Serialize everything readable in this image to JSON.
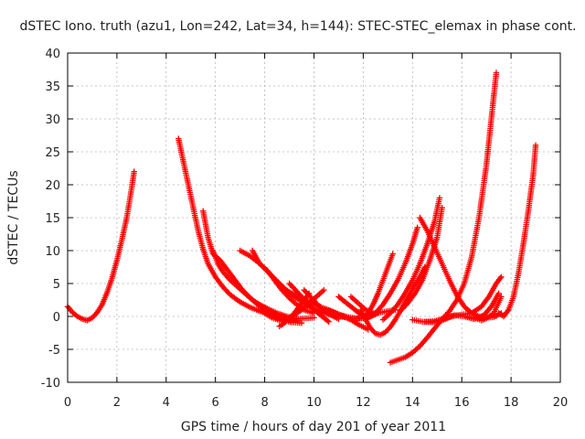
{
  "chart_data": {
    "type": "scatter",
    "title": "dSTEC Iono. truth (azu1, Lon=242, Lat=34, h=144): STEC-STEC_elemax in phase cont.",
    "xlabel": "GPS time / hours of day 201 of year 2011",
    "ylabel": "dSTEC  / TECUs",
    "xlim": [
      0,
      20
    ],
    "ylim": [
      -10,
      40
    ],
    "xticks": [
      0,
      2,
      4,
      6,
      8,
      10,
      12,
      14,
      16,
      18,
      20
    ],
    "yticks": [
      -10,
      -5,
      0,
      5,
      10,
      15,
      20,
      25,
      30,
      35,
      40
    ],
    "grid": true,
    "marker": "+",
    "color": "#ff0000",
    "series": [
      {
        "x": [
          0.0,
          0.2,
          0.4,
          0.6,
          0.8,
          1.0,
          1.2,
          1.4,
          1.6,
          1.8,
          2.0,
          2.2,
          2.4,
          2.6,
          2.7
        ],
        "y": [
          1.5,
          0.6,
          0.0,
          -0.4,
          -0.6,
          -0.2,
          0.6,
          1.8,
          3.6,
          5.8,
          8.5,
          11.6,
          15.0,
          19.5,
          22.0
        ]
      },
      {
        "x": [
          4.5,
          4.7,
          4.9,
          5.1,
          5.3,
          5.5,
          5.7,
          6.0,
          6.3,
          6.6,
          7.0,
          7.4,
          7.8,
          8.2,
          8.6,
          9.0,
          9.3,
          9.6,
          10.0
        ],
        "y": [
          27.0,
          23.5,
          20.0,
          16.5,
          13.0,
          10.2,
          8.0,
          6.0,
          4.5,
          3.3,
          2.2,
          1.4,
          0.8,
          0.3,
          -0.1,
          -0.3,
          -0.4,
          -0.3,
          -0.2
        ]
      },
      {
        "x": [
          5.5,
          5.7,
          5.9,
          6.2,
          6.5,
          6.8,
          7.1,
          7.5,
          7.9,
          8.3,
          8.7,
          9.1,
          9.5
        ],
        "y": [
          16.0,
          12.0,
          9.5,
          8.5,
          7.0,
          5.5,
          4.0,
          2.5,
          1.2,
          0.2,
          -0.5,
          -0.9,
          -1.0
        ]
      },
      {
        "x": [
          5.9,
          6.1,
          6.3,
          6.6,
          6.9,
          7.2,
          7.5,
          7.8,
          8.1,
          8.5,
          8.9,
          9.3
        ],
        "y": [
          10.0,
          8.0,
          6.8,
          5.5,
          4.5,
          3.5,
          2.5,
          1.8,
          1.2,
          0.5,
          0.0,
          -0.3
        ]
      },
      {
        "x": [
          7.0,
          7.4,
          7.8,
          8.1,
          8.4,
          8.7,
          9.0,
          9.3,
          9.6,
          10.0
        ],
        "y": [
          10.0,
          9.2,
          8.0,
          7.0,
          5.5,
          4.0,
          2.8,
          1.8,
          1.0,
          0.5
        ]
      },
      {
        "x": [
          7.5,
          7.8,
          8.2,
          8.6,
          9.0,
          9.4,
          9.8,
          10.2,
          10.6,
          11.0,
          11.4,
          11.8
        ],
        "y": [
          10.0,
          8.0,
          6.5,
          5.0,
          3.5,
          2.5,
          1.5,
          0.8,
          0.3,
          0.0,
          -0.2,
          -0.3
        ]
      },
      {
        "x": [
          8.5,
          8.8,
          9.1,
          9.4,
          9.7,
          10.0,
          10.3,
          10.6,
          10.9,
          11.2,
          11.5,
          11.8,
          12.2
        ],
        "y": [
          5.0,
          4.2,
          3.5,
          3.0,
          2.4,
          1.9,
          1.4,
          1.0,
          0.5,
          0.0,
          -0.5,
          -1.2,
          -2.0
        ]
      },
      {
        "x": [
          9.0,
          9.2,
          9.4,
          9.6,
          9.8,
          10.0,
          10.2,
          10.4,
          10.6
        ],
        "y": [
          5.0,
          4.2,
          3.4,
          2.6,
          1.8,
          1.0,
          0.4,
          -0.2,
          -0.8
        ]
      },
      {
        "x": [
          8.0,
          8.3,
          8.6,
          8.9,
          9.2,
          9.5,
          9.8,
          10.1,
          10.4
        ],
        "y": [
          0.5,
          -0.2,
          -0.6,
          -0.4,
          0.2,
          1.0,
          2.0,
          3.0,
          4.0
        ]
      },
      {
        "x": [
          8.6,
          8.8,
          9.0,
          9.2,
          9.4,
          9.6,
          9.8
        ],
        "y": [
          -1.5,
          -1.0,
          -0.3,
          0.5,
          1.5,
          2.5,
          3.5
        ]
      },
      {
        "x": [
          9.6,
          9.8,
          10.0,
          10.2,
          10.4,
          10.6,
          10.8,
          11.0
        ],
        "y": [
          4.0,
          3.2,
          2.4,
          1.6,
          1.0,
          0.4,
          0.0,
          -0.4
        ]
      },
      {
        "x": [
          10.5,
          10.8,
          11.1,
          11.4,
          11.7,
          12.0,
          12.3,
          12.6
        ],
        "y": [
          1.0,
          0.6,
          0.2,
          -0.1,
          -0.3,
          -0.3,
          0.0,
          0.5
        ]
      },
      {
        "x": [
          11.0,
          11.2,
          11.4,
          11.6,
          11.8,
          12.0
        ],
        "y": [
          3.0,
          2.4,
          1.8,
          1.2,
          0.6,
          0.1
        ]
      },
      {
        "x": [
          11.5,
          11.8,
          12.1,
          12.4,
          12.7,
          13.0,
          13.3
        ],
        "y": [
          3.0,
          2.0,
          1.0,
          0.5,
          0.6,
          0.8,
          1.0
        ]
      },
      {
        "x": [
          11.9,
          12.1,
          12.3,
          12.5,
          12.7,
          12.9,
          13.1,
          13.3,
          13.5,
          13.7,
          13.9,
          14.1,
          14.3,
          14.5
        ],
        "y": [
          1.0,
          -0.5,
          -1.8,
          -2.6,
          -2.8,
          -2.4,
          -1.6,
          -0.5,
          0.8,
          2.2,
          3.5,
          4.8,
          6.0,
          7.5
        ]
      },
      {
        "x": [
          11.8,
          12.0,
          12.2,
          12.4,
          12.6,
          12.8,
          13.0,
          13.2
        ],
        "y": [
          -0.2,
          -0.2,
          0.5,
          1.8,
          3.5,
          5.5,
          7.5,
          9.5
        ]
      },
      {
        "x": [
          12.2,
          12.5,
          12.8,
          13.1,
          13.4,
          13.7,
          14.0,
          14.2
        ],
        "y": [
          -0.2,
          0.5,
          1.8,
          3.5,
          5.5,
          8.0,
          11.0,
          13.5
        ]
      },
      {
        "x": [
          12.8,
          13.1,
          13.4,
          13.7,
          14.0,
          14.3,
          14.6,
          14.9,
          15.1
        ],
        "y": [
          -0.5,
          0.5,
          1.8,
          3.5,
          5.5,
          8.0,
          11.0,
          14.5,
          18.0
        ]
      },
      {
        "x": [
          13.5,
          13.8,
          14.1,
          14.4,
          14.7,
          15.0,
          15.2
        ],
        "y": [
          0.8,
          2.0,
          3.5,
          5.5,
          8.5,
          12.0,
          16.5
        ]
      },
      {
        "x": [
          13.1,
          13.4,
          13.7,
          14.0,
          14.3,
          14.6,
          14.9,
          15.2,
          15.5,
          15.8,
          16.1,
          16.4,
          16.7,
          17.0,
          17.2,
          17.4
        ],
        "y": [
          -7.0,
          -6.6,
          -6.2,
          -5.5,
          -4.5,
          -3.2,
          -1.8,
          -0.4,
          0.8,
          2.5,
          5.0,
          9.0,
          15.0,
          23.0,
          30.0,
          37.0
        ]
      },
      {
        "x": [
          14.3,
          14.6,
          14.9,
          15.2,
          15.5,
          15.8,
          16.1,
          16.4,
          16.7,
          17.0,
          17.3,
          17.6
        ],
        "y": [
          15.0,
          13.0,
          10.5,
          8.0,
          5.5,
          3.2,
          1.5,
          0.5,
          0.0,
          -0.2,
          -0.1,
          0.5
        ]
      },
      {
        "x": [
          14.0,
          14.4,
          14.8,
          15.2,
          15.6,
          16.0,
          16.4,
          16.8,
          17.1,
          17.4,
          17.6
        ],
        "y": [
          -0.5,
          -0.8,
          -0.9,
          -0.6,
          0.0,
          0.3,
          0.5,
          1.5,
          3.0,
          5.0,
          6.0
        ]
      },
      {
        "x": [
          14.5,
          14.9,
          15.3,
          15.7,
          16.1,
          16.5,
          16.9,
          17.2,
          17.5
        ],
        "y": [
          -0.8,
          -0.7,
          -0.3,
          0.2,
          0.0,
          -0.4,
          0.2,
          1.5,
          3.5
        ]
      },
      {
        "x": [
          16.5,
          16.8,
          17.0,
          17.3,
          17.6
        ],
        "y": [
          -0.2,
          -0.6,
          -0.3,
          0.5,
          3.0
        ]
      },
      {
        "x": [
          17.5,
          17.7,
          17.9,
          18.1,
          18.3,
          18.5,
          18.7,
          18.9,
          19.0
        ],
        "y": [
          0.5,
          0.0,
          1.0,
          3.0,
          6.5,
          11.0,
          16.0,
          21.5,
          26.0
        ]
      }
    ]
  }
}
